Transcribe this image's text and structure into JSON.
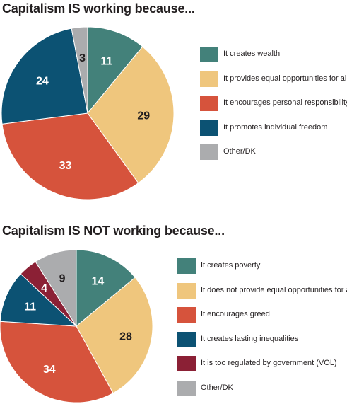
{
  "chart_data": [
    {
      "type": "pie",
      "title": "Capitalism IS working because...",
      "categories": [
        "It creates wealth",
        "It provides equal opportunities for all",
        "It encourages personal responsibility",
        "It promotes individual freedom",
        "Other/DK"
      ],
      "values": [
        11,
        29,
        33,
        24,
        3
      ],
      "colors": [
        "#43817a",
        "#efc67d",
        "#d6533c",
        "#0c5273",
        "#abacae"
      ],
      "label_colors": [
        "#ffffff",
        "#231f20",
        "#ffffff",
        "#ffffff",
        "#231f20"
      ],
      "legend_position": "right"
    },
    {
      "type": "pie",
      "title": "Capitalism IS NOT working because...",
      "categories": [
        "It creates poverty",
        "It does not provide equal opportunities for all",
        "It encourages greed",
        "It creates lasting inequalities",
        "It is too regulated by government (VOL)",
        "Other/DK"
      ],
      "values": [
        14,
        28,
        34,
        11,
        4,
        9
      ],
      "colors": [
        "#43817a",
        "#efc67d",
        "#d6533c",
        "#0c5273",
        "#8b2035",
        "#abacae"
      ],
      "label_colors": [
        "#ffffff",
        "#231f20",
        "#ffffff",
        "#ffffff",
        "#ffffff",
        "#231f20"
      ],
      "legend_position": "right"
    }
  ]
}
